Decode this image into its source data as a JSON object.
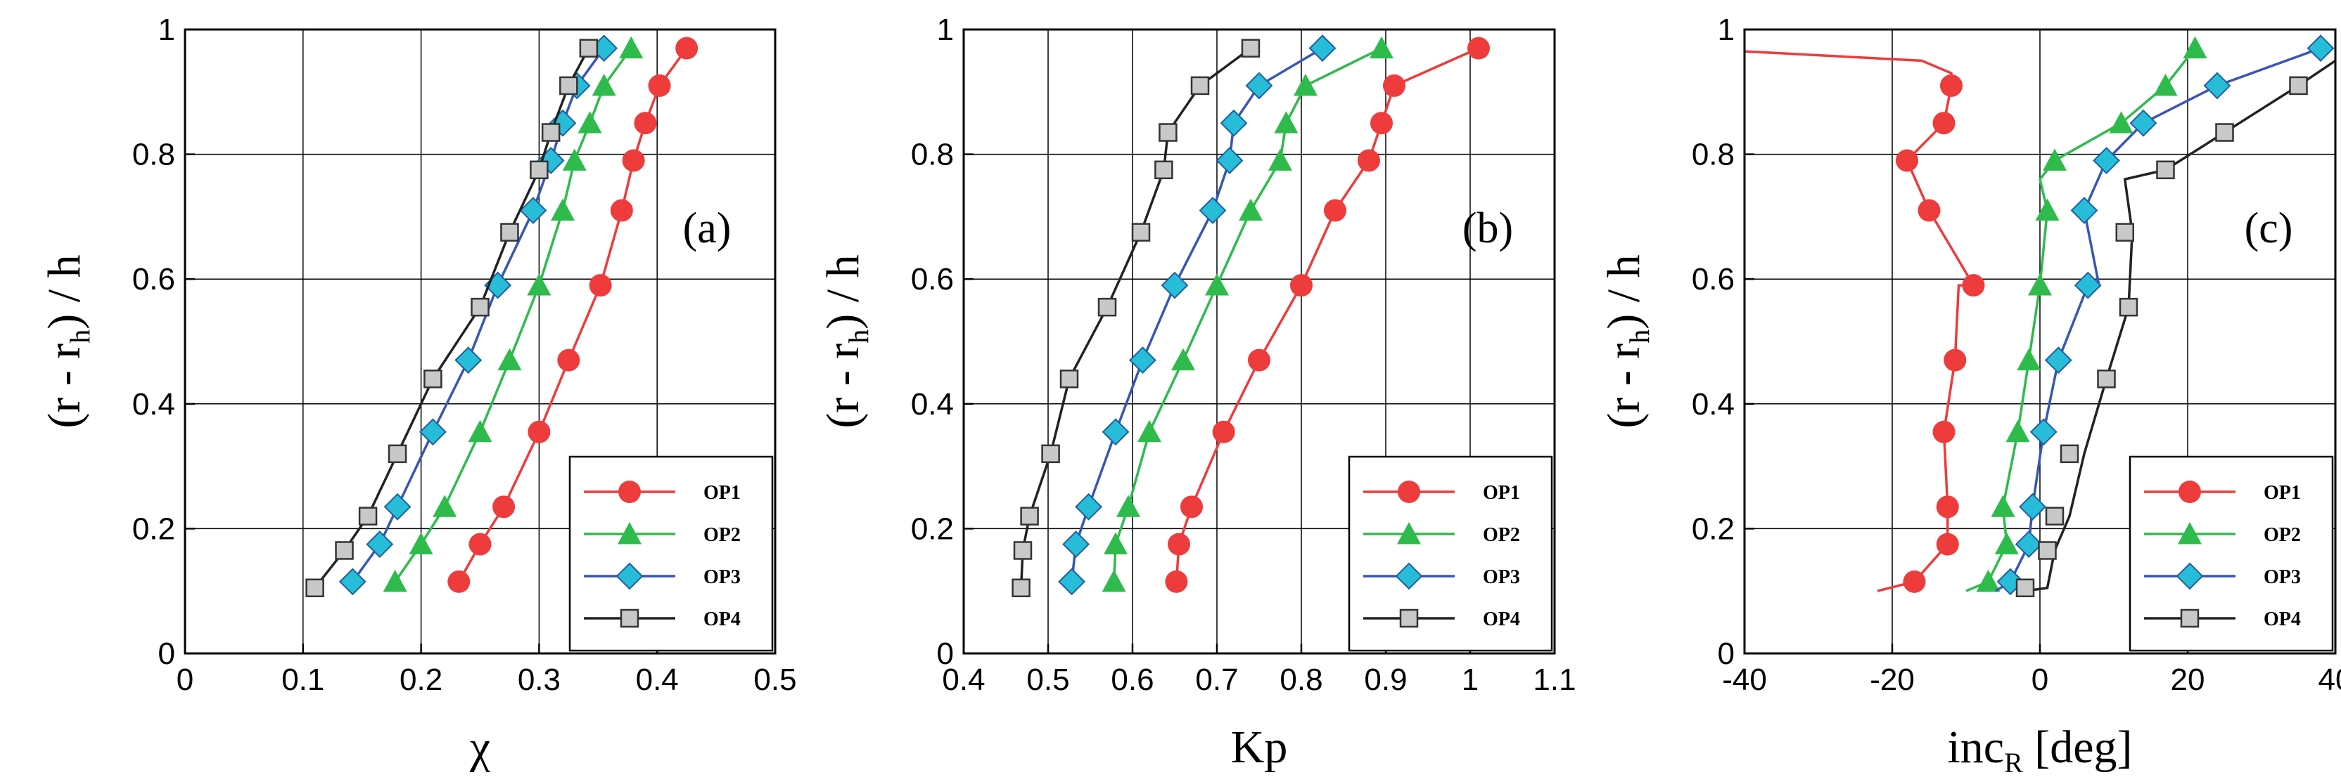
{
  "chart_data": [
    {
      "type": "line",
      "panel_label": "(a)",
      "xlabel": "χ",
      "ylabel": "(r - r",
      "ylabel_sub": "h",
      "ylabel_tail": ") / h",
      "xlim": [
        0,
        0.5
      ],
      "ylim": [
        0,
        1
      ],
      "xticks": [
        0,
        0.1,
        0.2,
        0.3,
        0.4,
        0.5
      ],
      "xtick_labels": [
        "0",
        "0.1",
        "0.2",
        "0.3",
        "0.4",
        "0.5"
      ],
      "yticks": [
        0,
        0.2,
        0.4,
        0.6,
        0.8,
        1
      ],
      "ytick_labels": [
        "0",
        "0.2",
        "0.4",
        "0.6",
        "0.8",
        "1"
      ],
      "grid": true,
      "legend_position": "bottom-right",
      "series": [
        {
          "name": "OP1",
          "color": "#ee3b3b",
          "marker": "circle",
          "x": [
            0.232,
            0.25,
            0.27,
            0.3,
            0.325,
            0.352,
            0.37,
            0.38,
            0.39,
            0.402,
            0.425
          ],
          "y": [
            0.115,
            0.175,
            0.235,
            0.355,
            0.47,
            0.59,
            0.71,
            0.79,
            0.85,
            0.91,
            0.97
          ]
        },
        {
          "name": "OP2",
          "color": "#2ebb4c",
          "marker": "triangle",
          "x": [
            0.178,
            0.2,
            0.22,
            0.25,
            0.275,
            0.3,
            0.32,
            0.33,
            0.343,
            0.355,
            0.378
          ],
          "y": [
            0.115,
            0.175,
            0.235,
            0.355,
            0.47,
            0.59,
            0.71,
            0.79,
            0.85,
            0.91,
            0.97
          ]
        },
        {
          "name": "OP3",
          "color": "#27bdd9",
          "line_color": "#3a55b4",
          "marker": "diamond",
          "x": [
            0.142,
            0.165,
            0.18,
            0.21,
            0.24,
            0.265,
            0.295,
            0.31,
            0.32,
            0.332,
            0.355
          ],
          "y": [
            0.115,
            0.175,
            0.235,
            0.355,
            0.47,
            0.59,
            0.71,
            0.79,
            0.85,
            0.91,
            0.97
          ]
        },
        {
          "name": "OP4",
          "color": "#c8c8c8",
          "line_color": "#222222",
          "marker": "square",
          "x": [
            0.11,
            0.135,
            0.155,
            0.18,
            0.21,
            0.25,
            0.275,
            0.3,
            0.31,
            0.325,
            0.342
          ],
          "y": [
            0.105,
            0.165,
            0.22,
            0.32,
            0.44,
            0.555,
            0.675,
            0.775,
            0.835,
            0.91,
            0.97
          ]
        }
      ]
    },
    {
      "type": "line",
      "panel_label": "(b)",
      "xlabel": "Kp",
      "ylabel": "(r - r",
      "ylabel_sub": "h",
      "ylabel_tail": ") / h",
      "xlim": [
        0.4,
        1.1
      ],
      "ylim": [
        0,
        1
      ],
      "xticks": [
        0.4,
        0.5,
        0.6,
        0.7,
        0.8,
        0.9,
        1.0,
        1.1
      ],
      "xtick_labels": [
        "0.4",
        "0.5",
        "0.6",
        "0.7",
        "0.8",
        "0.9",
        "1",
        "1.1"
      ],
      "yticks": [
        0,
        0.2,
        0.4,
        0.6,
        0.8,
        1
      ],
      "ytick_labels": [
        "0",
        "0.2",
        "0.4",
        "0.6",
        "0.8",
        "1"
      ],
      "grid": true,
      "legend_position": "bottom-right",
      "series": [
        {
          "name": "OP1",
          "color": "#ee3b3b",
          "marker": "circle",
          "x": [
            0.652,
            0.655,
            0.67,
            0.708,
            0.75,
            0.8,
            0.84,
            0.88,
            0.895,
            0.91,
            1.01
          ],
          "y": [
            0.115,
            0.175,
            0.235,
            0.355,
            0.47,
            0.59,
            0.71,
            0.79,
            0.85,
            0.91,
            0.97
          ]
        },
        {
          "name": "OP2",
          "color": "#2ebb4c",
          "marker": "triangle",
          "x": [
            0.578,
            0.58,
            0.595,
            0.62,
            0.66,
            0.7,
            0.74,
            0.775,
            0.782,
            0.805,
            0.895
          ],
          "y": [
            0.115,
            0.175,
            0.235,
            0.355,
            0.47,
            0.59,
            0.71,
            0.79,
            0.85,
            0.91,
            0.97
          ]
        },
        {
          "name": "OP3",
          "color": "#27bdd9",
          "line_color": "#3a55b4",
          "marker": "diamond",
          "x": [
            0.528,
            0.533,
            0.548,
            0.58,
            0.612,
            0.65,
            0.695,
            0.715,
            0.72,
            0.75,
            0.825
          ],
          "y": [
            0.115,
            0.175,
            0.235,
            0.355,
            0.47,
            0.59,
            0.71,
            0.79,
            0.85,
            0.91,
            0.97
          ]
        },
        {
          "name": "OP4",
          "color": "#c8c8c8",
          "line_color": "#222222",
          "marker": "square",
          "x": [
            0.468,
            0.47,
            0.478,
            0.503,
            0.525,
            0.57,
            0.61,
            0.637,
            0.642,
            0.68,
            0.74
          ],
          "y": [
            0.105,
            0.165,
            0.22,
            0.32,
            0.44,
            0.555,
            0.675,
            0.775,
            0.835,
            0.91,
            0.97
          ]
        }
      ]
    },
    {
      "type": "line",
      "panel_label": "(c)",
      "xlabel": "inc",
      "xlabel_sub": "R",
      "xlabel_tail": " [deg]",
      "ylabel": "(r - r",
      "ylabel_sub": "h",
      "ylabel_tail": ") / h",
      "xlim": [
        -40,
        40
      ],
      "ylim": [
        0,
        1
      ],
      "xticks": [
        -40,
        -20,
        0,
        20,
        40
      ],
      "xtick_labels": [
        "-40",
        "-20",
        "0",
        "20",
        "40"
      ],
      "yticks": [
        0,
        0.2,
        0.4,
        0.6,
        0.8,
        1
      ],
      "ytick_labels": [
        "0",
        "0.2",
        "0.4",
        "0.6",
        "0.8",
        "1"
      ],
      "grid": true,
      "legend_position": "bottom-right",
      "series": [
        {
          "name": "OP1",
          "color": "#ee3b3b",
          "marker": "circle",
          "x_line": [
            -22,
            -17,
            -12.5,
            -12.5,
            -13,
            -11.5,
            -11,
            -9,
            -15,
            -18,
            -13,
            -12,
            -12,
            -16,
            -40
          ],
          "y_line": [
            0.1,
            0.115,
            0.175,
            0.235,
            0.355,
            0.47,
            0.59,
            0.59,
            0.71,
            0.79,
            0.85,
            0.91,
            0.93,
            0.95,
            0.965
          ],
          "x": [
            -17,
            -12.5,
            -12.5,
            -13,
            -11.5,
            -9,
            -15,
            -18,
            -13,
            -12
          ],
          "y": [
            0.115,
            0.175,
            0.235,
            0.355,
            0.47,
            0.59,
            0.71,
            0.79,
            0.85,
            0.91
          ]
        },
        {
          "name": "OP2",
          "color": "#2ebb4c",
          "marker": "triangle",
          "x_line": [
            -10,
            -7,
            -4.5,
            -5,
            -3,
            -1.5,
            0,
            1,
            0,
            2,
            11,
            17,
            21
          ],
          "y_line": [
            0.1,
            0.115,
            0.175,
            0.235,
            0.355,
            0.47,
            0.59,
            0.71,
            0.76,
            0.79,
            0.85,
            0.91,
            0.97
          ],
          "x": [
            -7,
            -4.5,
            -5,
            -3,
            -1.5,
            0,
            1,
            2,
            11,
            17,
            21
          ],
          "y": [
            0.115,
            0.175,
            0.235,
            0.355,
            0.47,
            0.59,
            0.71,
            0.79,
            0.85,
            0.91,
            0.97
          ]
        },
        {
          "name": "OP3",
          "color": "#27bdd9",
          "line_color": "#3a55b4",
          "marker": "diamond",
          "x_line": [
            -6,
            -4,
            -1.5,
            -1,
            0.5,
            2.5,
            6.5,
            8,
            6,
            9,
            14,
            24,
            38
          ],
          "y_line": [
            0.1,
            0.115,
            0.175,
            0.235,
            0.355,
            0.47,
            0.59,
            0.59,
            0.71,
            0.79,
            0.85,
            0.91,
            0.97
          ],
          "x": [
            -4,
            -1.5,
            -1,
            0.5,
            2.5,
            6.5,
            6,
            9,
            14,
            24,
            38
          ],
          "y": [
            0.115,
            0.175,
            0.235,
            0.355,
            0.47,
            0.59,
            0.71,
            0.79,
            0.85,
            0.91,
            0.97
          ]
        },
        {
          "name": "OP4",
          "color": "#c8c8c8",
          "line_color": "#222222",
          "marker": "square",
          "x_line": [
            -2,
            1,
            2,
            4,
            6,
            9,
            12,
            12.5,
            11.5,
            17,
            25,
            35,
            40
          ],
          "y_line": [
            0.1,
            0.105,
            0.165,
            0.22,
            0.32,
            0.44,
            0.555,
            0.675,
            0.76,
            0.775,
            0.835,
            0.91,
            0.95
          ],
          "x": [
            -2,
            1,
            2,
            4,
            9,
            12,
            11.5,
            17,
            25,
            35
          ],
          "y": [
            0.105,
            0.165,
            0.22,
            0.32,
            0.44,
            0.555,
            0.675,
            0.775,
            0.835,
            0.91
          ]
        }
      ]
    }
  ]
}
